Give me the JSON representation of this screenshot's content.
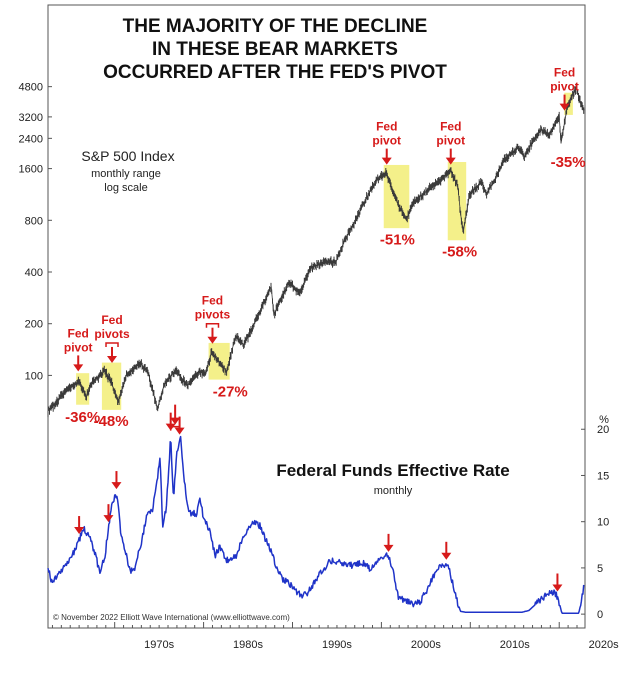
{
  "title_lines": [
    "THE MAJORITY OF THE DECLINE",
    "IN THESE BEAR MARKETS",
    "OCCURRED AFTER THE FED'S PIVOT"
  ],
  "copyright": "© November 2022 Elliott Wave International (www.elliottwave.com)",
  "colors": {
    "spx": "#3a3a3a",
    "rate": "#1f33c8",
    "highlight": "#f4f08a",
    "annotation": "#d61a1a"
  },
  "chart_data": [
    {
      "type": "line",
      "name": "S&P 500 Index",
      "subtitle_lines": [
        "monthly range",
        "log scale"
      ],
      "scale": "log",
      "y_ticks": [
        100,
        200,
        400,
        800,
        1600,
        2400,
        3200,
        4800
      ],
      "ylim": [
        55,
        6000
      ],
      "xlim": [
        1962.5,
        2022.9
      ],
      "points": [
        [
          1962.5,
          62
        ],
        [
          1963.5,
          70
        ],
        [
          1964.5,
          82
        ],
        [
          1966.0,
          92
        ],
        [
          1966.8,
          75
        ],
        [
          1967.5,
          92
        ],
        [
          1968.9,
          106
        ],
        [
          1969.6,
          92
        ],
        [
          1970.4,
          70
        ],
        [
          1971.3,
          100
        ],
        [
          1972.9,
          118
        ],
        [
          1973.8,
          102
        ],
        [
          1974.8,
          64
        ],
        [
          1975.6,
          90
        ],
        [
          1976.8,
          107
        ],
        [
          1978.2,
          88
        ],
        [
          1979.5,
          106
        ],
        [
          1980.2,
          100
        ],
        [
          1980.9,
          138
        ],
        [
          1982.6,
          105
        ],
        [
          1983.6,
          170
        ],
        [
          1984.5,
          150
        ],
        [
          1985.5,
          190
        ],
        [
          1986.5,
          245
        ],
        [
          1987.6,
          330
        ],
        [
          1987.9,
          225
        ],
        [
          1989.6,
          350
        ],
        [
          1990.8,
          300
        ],
        [
          1992.0,
          420
        ],
        [
          1993.5,
          460
        ],
        [
          1994.9,
          460
        ],
        [
          1995.9,
          620
        ],
        [
          1996.9,
          760
        ],
        [
          1997.9,
          980
        ],
        [
          1998.9,
          1230
        ],
        [
          1999.9,
          1470
        ],
        [
          2000.6,
          1500
        ],
        [
          2001.7,
          1040
        ],
        [
          2002.8,
          800
        ],
        [
          2003.5,
          1000
        ],
        [
          2004.5,
          1120
        ],
        [
          2005.9,
          1280
        ],
        [
          2007.8,
          1560
        ],
        [
          2008.6,
          1250
        ],
        [
          2008.9,
          880
        ],
        [
          2009.2,
          680
        ],
        [
          2009.9,
          1120
        ],
        [
          2011.3,
          1340
        ],
        [
          2011.8,
          1130
        ],
        [
          2012.9,
          1430
        ],
        [
          2013.9,
          1840
        ],
        [
          2015.4,
          2100
        ],
        [
          2016.1,
          1880
        ],
        [
          2016.9,
          2250
        ],
        [
          2017.9,
          2700
        ],
        [
          2018.9,
          2500
        ],
        [
          2019.6,
          2950
        ],
        [
          2020.0,
          3250
        ],
        [
          2020.2,
          2240
        ],
        [
          2020.9,
          3650
        ],
        [
          2021.9,
          4750
        ],
        [
          2022.5,
          3700
        ],
        [
          2022.8,
          3500
        ]
      ],
      "highlights": [
        [
          1966.0,
          1966.8
        ],
        [
          1968.9,
          1970.4
        ],
        [
          1980.9,
          1982.6
        ],
        [
          2000.6,
          2002.8
        ],
        [
          2007.8,
          2009.2
        ],
        [
          2020.9,
          2021.2
        ]
      ],
      "annotations": [
        {
          "lines": [
            "Fed",
            "pivot"
          ],
          "x": 1965.9,
          "y": 100,
          "bracket": false
        },
        {
          "lines": [
            "Fed",
            "pivots"
          ],
          "x": 1969.7,
          "y": 112,
          "bracket": true
        },
        {
          "lines": [
            "Fed",
            "pivots"
          ],
          "x": 1981.0,
          "y": 145,
          "bracket": true
        },
        {
          "lines": [
            "Fed",
            "pivot"
          ],
          "x": 2000.6,
          "y": 1600,
          "bracket": false
        },
        {
          "lines": [
            "Fed",
            "pivot"
          ],
          "x": 2007.8,
          "y": 1600,
          "bracket": false
        },
        {
          "lines": [
            "Fed",
            "pivot"
          ],
          "x": 2020.6,
          "y": 3300,
          "bracket": false
        }
      ],
      "declines": [
        {
          "label": "-36%",
          "x": 1966.4,
          "y": 74
        },
        {
          "label": "-48%",
          "x": 1969.6,
          "y": 70
        },
        {
          "label": "-27%",
          "x": 1983.0,
          "y": 104
        },
        {
          "label": "-51%",
          "x": 2001.8,
          "y": 800
        },
        {
          "label": "-58%",
          "x": 2008.8,
          "y": 680
        },
        {
          "label": "-35%",
          "x": 2021.0,
          "y": 2250
        }
      ]
    },
    {
      "type": "line",
      "name": "Federal Funds Effective Rate",
      "subtitle": "monthly",
      "unit": "%",
      "y_ticks": [
        0,
        5,
        10,
        15,
        20
      ],
      "ylim": [
        -1.5,
        21
      ],
      "x_ticks": [
        "1970s",
        "1980s",
        "1990s",
        "2000s",
        "2010s",
        "2020s"
      ],
      "x_tick_values": [
        1970,
        1980,
        1990,
        2000,
        2010,
        2020
      ],
      "xlim": [
        1962.5,
        2022.9
      ],
      "points": [
        [
          1962.5,
          5.0
        ],
        [
          1963.0,
          3.2
        ],
        [
          1963.5,
          4.2
        ],
        [
          1964.8,
          5.6
        ],
        [
          1965.8,
          7.5
        ],
        [
          1966.5,
          9.3
        ],
        [
          1967.3,
          8.0
        ],
        [
          1967.9,
          6.2
        ],
        [
          1968.3,
          4.5
        ],
        [
          1968.9,
          6.3
        ],
        [
          1969.5,
          10.8
        ],
        [
          1969.8,
          12.4
        ],
        [
          1970.3,
          13.0
        ],
        [
          1970.7,
          8.5
        ],
        [
          1971.2,
          7.0
        ],
        [
          1971.7,
          4.7
        ],
        [
          1972.3,
          5.0
        ],
        [
          1973.1,
          8.3
        ],
        [
          1973.6,
          10.5
        ],
        [
          1974.3,
          11.5
        ],
        [
          1974.9,
          15.5
        ],
        [
          1975.1,
          17.2
        ],
        [
          1975.4,
          9.5
        ],
        [
          1975.8,
          11.5
        ],
        [
          1976.3,
          19.2
        ],
        [
          1976.6,
          12.5
        ],
        [
          1977.0,
          17.5
        ],
        [
          1977.4,
          19.2
        ],
        [
          1977.8,
          14.5
        ],
        [
          1978.3,
          11.0
        ],
        [
          1979.2,
          10.8
        ],
        [
          1979.6,
          12.4
        ],
        [
          1980.1,
          10.0
        ],
        [
          1980.7,
          9.2
        ],
        [
          1981.3,
          6.2
        ],
        [
          1981.8,
          7.3
        ],
        [
          1982.6,
          5.8
        ],
        [
          1983.6,
          6.2
        ],
        [
          1984.6,
          8.7
        ],
        [
          1985.6,
          10.0
        ],
        [
          1986.4,
          9.5
        ],
        [
          1986.9,
          8.2
        ],
        [
          1987.6,
          6.8
        ],
        [
          1988.3,
          4.8
        ],
        [
          1988.9,
          3.8
        ],
        [
          1989.5,
          3.4
        ],
        [
          1990.0,
          2.9
        ],
        [
          1990.9,
          2.0
        ],
        [
          1991.5,
          2.1
        ],
        [
          1992.3,
          3.1
        ],
        [
          1993.2,
          4.6
        ],
        [
          1994.3,
          5.8
        ],
        [
          1995.2,
          5.6
        ],
        [
          1996.3,
          5.2
        ],
        [
          1997.4,
          5.5
        ],
        [
          1998.3,
          5.5
        ],
        [
          1998.8,
          4.8
        ],
        [
          1999.3,
          5.3
        ],
        [
          1999.9,
          6.1
        ],
        [
          2000.6,
          6.6
        ],
        [
          2001.3,
          4.8
        ],
        [
          2001.9,
          1.8
        ],
        [
          2002.5,
          1.6
        ],
        [
          2003.5,
          1.0
        ],
        [
          2004.4,
          1.3
        ],
        [
          2005.4,
          3.2
        ],
        [
          2006.5,
          5.3
        ],
        [
          2007.6,
          5.2
        ],
        [
          2008.2,
          2.4
        ],
        [
          2008.9,
          0.3
        ],
        [
          2009.5,
          0.2
        ],
        [
          2015.8,
          0.2
        ],
        [
          2016.6,
          0.4
        ],
        [
          2017.5,
          1.2
        ],
        [
          2018.4,
          2.0
        ],
        [
          2019.5,
          2.4
        ],
        [
          2019.9,
          1.6
        ],
        [
          2020.3,
          0.1
        ],
        [
          2022.2,
          0.1
        ],
        [
          2022.5,
          1.5
        ],
        [
          2022.8,
          3.1
        ]
      ],
      "arrows": [
        1966.0,
        1969.3,
        1970.2,
        1976.3,
        1977.3,
        2000.8,
        2007.3,
        2019.8
      ]
    }
  ]
}
